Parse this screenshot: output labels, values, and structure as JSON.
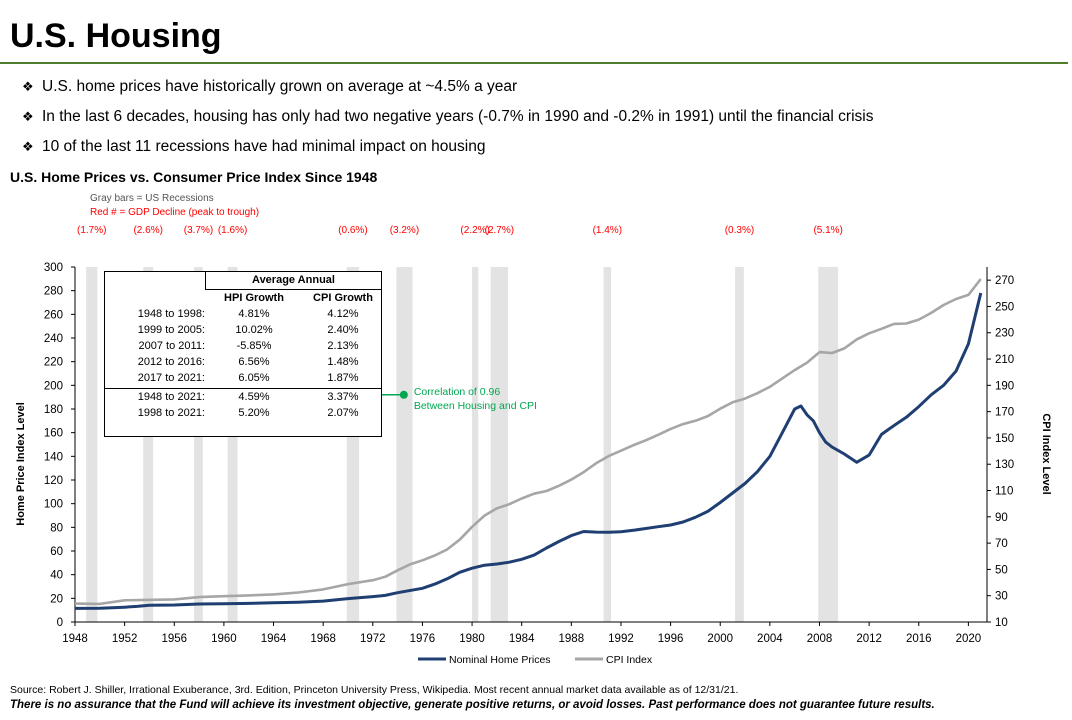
{
  "header": {
    "title": "U.S. Housing"
  },
  "bullets": [
    "U.S. home prices have historically grown on average at ~4.5% a year",
    "In the last 6 decades, housing has only had two negative years (-0.7% in 1990 and -0.2% in 1991) until the financial crisis",
    "10 of the last 11 recessions have had minimal impact on housing"
  ],
  "bullet_mark": "❖",
  "chart_data": {
    "type": "line",
    "title": "U.S. Home Prices vs. Consumer Price Index Since 1948",
    "notes": [
      "Gray bars = US Recessions",
      "Red # = GDP Decline (peak to trough)"
    ],
    "xlim": [
      1948,
      2021.5
    ],
    "x_ticks": [
      1948,
      1952,
      1956,
      1960,
      1964,
      1968,
      1972,
      1976,
      1980,
      1984,
      1988,
      1992,
      1996,
      2000,
      2004,
      2008,
      2012,
      2016,
      2020
    ],
    "y_left": {
      "label": "Home Price Index Level",
      "lim": [
        0,
        300
      ],
      "ticks": [
        0,
        20,
        40,
        60,
        80,
        100,
        120,
        140,
        160,
        180,
        200,
        220,
        240,
        260,
        280,
        300
      ]
    },
    "y_right": {
      "label": "CPI Index Level",
      "lim": [
        10,
        280
      ],
      "ticks": [
        10,
        30,
        50,
        70,
        90,
        110,
        130,
        150,
        170,
        190,
        210,
        230,
        250,
        270
      ]
    },
    "recessions": [
      {
        "start": 1948.9,
        "end": 1949.8,
        "label": "(1.7%)"
      },
      {
        "start": 1953.5,
        "end": 1954.3,
        "label": "(2.6%)"
      },
      {
        "start": 1957.6,
        "end": 1958.3,
        "label": "(3.7%)"
      },
      {
        "start": 1960.3,
        "end": 1961.1,
        "label": "(1.6%)"
      },
      {
        "start": 1969.9,
        "end": 1970.9,
        "label": "(0.6%)"
      },
      {
        "start": 1973.9,
        "end": 1975.2,
        "label": "(3.2%)"
      },
      {
        "start": 1980.0,
        "end": 1980.5,
        "label": "(2.2%)"
      },
      {
        "start": 1981.5,
        "end": 1982.9,
        "label": "(2.7%)"
      },
      {
        "start": 1990.6,
        "end": 1991.2,
        "label": "(1.4%)"
      },
      {
        "start": 2001.2,
        "end": 2001.9,
        "label": "(0.3%)"
      },
      {
        "start": 2007.9,
        "end": 2009.5,
        "label": "(5.1%)"
      }
    ],
    "series": [
      {
        "name": "Nominal Home Prices",
        "axis": "left",
        "color": "#1f3f73",
        "points": [
          [
            1948,
            11.5
          ],
          [
            1950,
            11.6
          ],
          [
            1952,
            12.5
          ],
          [
            1953,
            13.2
          ],
          [
            1954,
            14.2
          ],
          [
            1956,
            14.4
          ],
          [
            1958,
            15.2
          ],
          [
            1960,
            15.5
          ],
          [
            1962,
            15.7
          ],
          [
            1964,
            16.2
          ],
          [
            1966,
            16.7
          ],
          [
            1968,
            17.7
          ],
          [
            1970,
            19.8
          ],
          [
            1972,
            21.5
          ],
          [
            1973,
            22.5
          ],
          [
            1974,
            24.8
          ],
          [
            1976,
            28.5
          ],
          [
            1977,
            32.0
          ],
          [
            1978,
            36.5
          ],
          [
            1979,
            42.0
          ],
          [
            1980,
            45.5
          ],
          [
            1981,
            48.0
          ],
          [
            1982,
            49.0
          ],
          [
            1983,
            50.5
          ],
          [
            1984,
            53.0
          ],
          [
            1985,
            56.5
          ],
          [
            1986,
            62.5
          ],
          [
            1987,
            68.0
          ],
          [
            1988,
            73.0
          ],
          [
            1989,
            76.5
          ],
          [
            1990,
            76.0
          ],
          [
            1991,
            75.8
          ],
          [
            1992,
            76.3
          ],
          [
            1993,
            77.5
          ],
          [
            1994,
            79.0
          ],
          [
            1995,
            80.5
          ],
          [
            1996,
            82.0
          ],
          [
            1997,
            84.5
          ],
          [
            1998,
            88.5
          ],
          [
            1999,
            93.5
          ],
          [
            2000,
            101.0
          ],
          [
            2001,
            109.0
          ],
          [
            2002,
            117.0
          ],
          [
            2003,
            127.0
          ],
          [
            2004,
            140.0
          ],
          [
            2005,
            160.0
          ],
          [
            2006,
            180.0
          ],
          [
            2006.5,
            182.5
          ],
          [
            2007,
            175.0
          ],
          [
            2007.5,
            170.0
          ],
          [
            2008,
            160.0
          ],
          [
            2008.5,
            152.0
          ],
          [
            2009,
            148.0
          ],
          [
            2010,
            142.0
          ],
          [
            2011,
            135.0
          ],
          [
            2012,
            141.0
          ],
          [
            2013,
            158.5
          ],
          [
            2014,
            166.0
          ],
          [
            2015,
            173.0
          ],
          [
            2016,
            182.0
          ],
          [
            2017,
            192.0
          ],
          [
            2018,
            200.0
          ],
          [
            2019,
            212.0
          ],
          [
            2020,
            235.0
          ],
          [
            2021,
            278.0
          ]
        ]
      },
      {
        "name": "CPI Index",
        "axis": "right",
        "color": "#a6a6a6",
        "points": [
          [
            1948,
            24.0
          ],
          [
            1950,
            23.8
          ],
          [
            1952,
            26.5
          ],
          [
            1956,
            27.2
          ],
          [
            1958,
            28.9
          ],
          [
            1960,
            29.6
          ],
          [
            1962,
            30.2
          ],
          [
            1964,
            31.0
          ],
          [
            1966,
            32.4
          ],
          [
            1968,
            34.8
          ],
          [
            1970,
            38.8
          ],
          [
            1972,
            41.8
          ],
          [
            1973,
            44.4
          ],
          [
            1974,
            49.3
          ],
          [
            1975,
            53.8
          ],
          [
            1976,
            56.9
          ],
          [
            1977,
            60.6
          ],
          [
            1978,
            65.2
          ],
          [
            1979,
            72.6
          ],
          [
            1980,
            82.4
          ],
          [
            1981,
            90.9
          ],
          [
            1982,
            96.5
          ],
          [
            1983,
            99.6
          ],
          [
            1984,
            103.9
          ],
          [
            1985,
            107.6
          ],
          [
            1986,
            109.6
          ],
          [
            1987,
            113.6
          ],
          [
            1988,
            118.3
          ],
          [
            1989,
            124.0
          ],
          [
            1990,
            130.7
          ],
          [
            1991,
            136.2
          ],
          [
            1992,
            140.3
          ],
          [
            1993,
            144.5
          ],
          [
            1994,
            148.2
          ],
          [
            1995,
            152.4
          ],
          [
            1996,
            156.9
          ],
          [
            1997,
            160.5
          ],
          [
            1998,
            163.0
          ],
          [
            1999,
            166.6
          ],
          [
            2000,
            172.2
          ],
          [
            2001,
            177.1
          ],
          [
            2002,
            179.9
          ],
          [
            2003,
            184.0
          ],
          [
            2004,
            188.9
          ],
          [
            2005,
            195.3
          ],
          [
            2006,
            201.6
          ],
          [
            2007,
            207.3
          ],
          [
            2008,
            215.3
          ],
          [
            2009,
            214.5
          ],
          [
            2010,
            218.1
          ],
          [
            2011,
            224.9
          ],
          [
            2012,
            229.6
          ],
          [
            2013,
            233.0
          ],
          [
            2014,
            236.7
          ],
          [
            2015,
            237.0
          ],
          [
            2016,
            240.0
          ],
          [
            2017,
            245.1
          ],
          [
            2018,
            251.1
          ],
          [
            2019,
            255.7
          ],
          [
            2020,
            258.8
          ],
          [
            2021,
            270.9
          ]
        ]
      }
    ],
    "annotation": {
      "lines": [
        "Correlation of 0.96",
        "Between Housing and CPI"
      ],
      "color": "#00a651",
      "x": 1974.5,
      "y": 192
    },
    "stats_table": {
      "group_header": "Average Annual",
      "columns": [
        "HPI Growth",
        "CPI Growth"
      ],
      "rows": [
        [
          "1948 to 1998:",
          "4.81%",
          "4.12%"
        ],
        [
          "1999 to 2005:",
          "10.02%",
          "2.40%"
        ],
        [
          "2007 to 2011:",
          "-5.85%",
          "2.13%"
        ],
        [
          "2012 to 2016:",
          "6.56%",
          "1.48%"
        ],
        [
          "2017 to 2021:",
          "6.05%",
          "1.87%"
        ],
        [
          "1948 to 2021:",
          "4.59%",
          "3.37%"
        ],
        [
          "1998 to 2021:",
          "5.20%",
          "2.07%"
        ]
      ]
    },
    "legend_position": "bottom-center",
    "colors": {
      "recession_bar": "#e3e3e3",
      "gdp_label": "#ff0000",
      "axis_text": "#000000"
    }
  },
  "footer": {
    "source": "Source: Robert J. Shiller, Irrational Exuberance, 3rd. Edition, Princeton University Press, Wikipedia.  Most recent annual market data available as of 12/31/21.",
    "disclaimer": "There is no assurance that the Fund will achieve its investment objective, generate positive returns, or avoid losses. Past performance does not guarantee future results."
  }
}
